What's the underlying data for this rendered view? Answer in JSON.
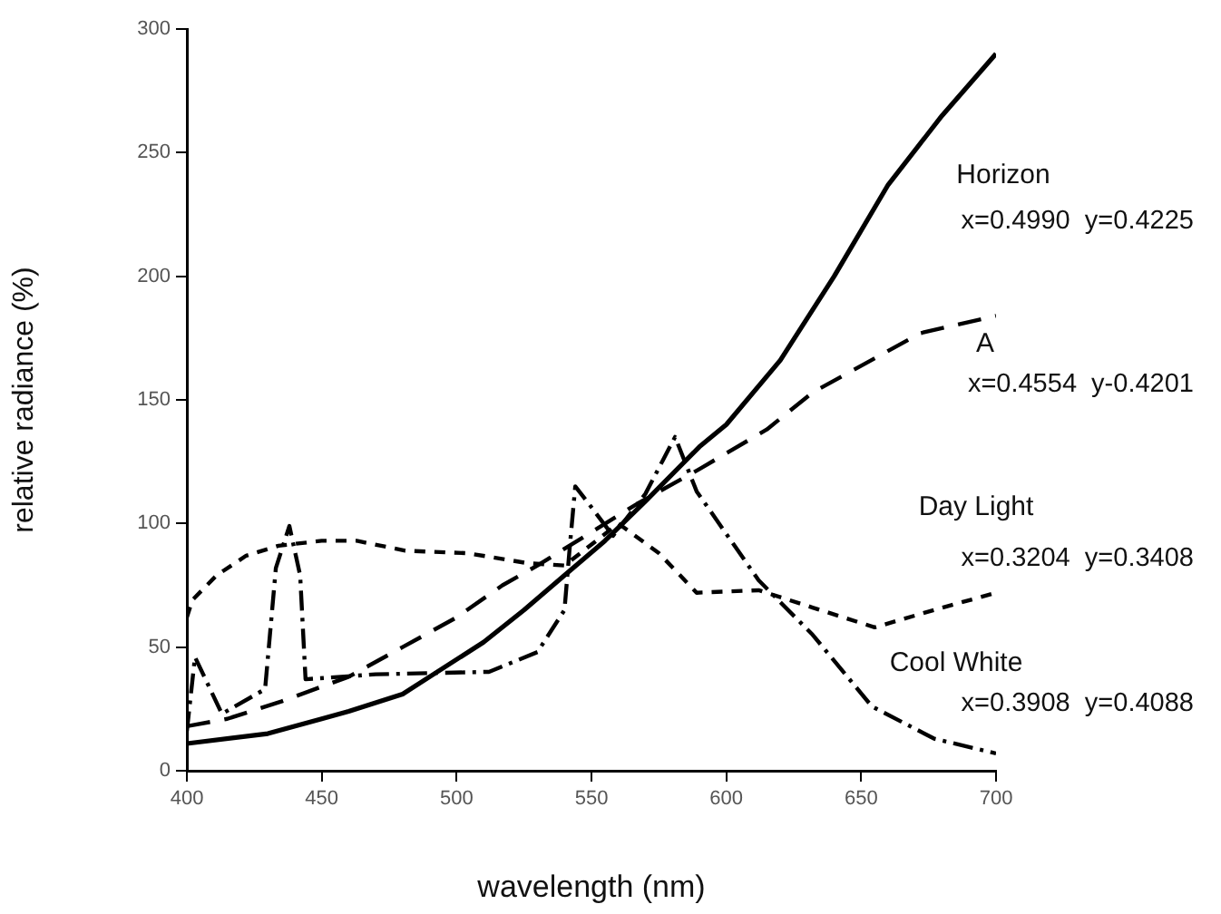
{
  "chart_data": {
    "type": "line",
    "xlabel": "wavelength (nm)",
    "ylabel": "relative radiance (%)",
    "xlim": [
      400,
      700
    ],
    "xticks": [
      400,
      450,
      500,
      550,
      600,
      650,
      700
    ],
    "ylim": [
      0,
      300
    ],
    "yticks": [
      0,
      50,
      100,
      150,
      200,
      250,
      300
    ],
    "grid": false,
    "legend": false,
    "marker": "none",
    "series": [
      {
        "name": "Horizon",
        "color": "#000000",
        "line_style": "solid",
        "x": [
          400,
          430,
          450,
          460,
          480,
          490,
          510,
          525,
          540,
          555,
          570,
          590,
          600,
          620,
          640,
          660,
          680,
          700
        ],
        "values": [
          11,
          15,
          21,
          24,
          31,
          38,
          52,
          65,
          79,
          93,
          109,
          131,
          140,
          166,
          200,
          237,
          265,
          290
        ]
      },
      {
        "name": "A",
        "color": "#000000",
        "line_style": "dashed",
        "x": [
          400,
          415,
          435,
          460,
          480,
          500,
          517,
          530,
          567,
          590,
          615,
          632,
          652,
          672,
          700
        ],
        "values": [
          18,
          21,
          28,
          38,
          50,
          62,
          75,
          83,
          108,
          122,
          138,
          153,
          165,
          177,
          184
        ]
      },
      {
        "name": "Day Light",
        "color": "#000000",
        "line_style": "dotted",
        "x": [
          400,
          402,
          411,
          422,
          434,
          450,
          463,
          481,
          504,
          526,
          540,
          560,
          575,
          589,
          612,
          632,
          655,
          677,
          700
        ],
        "values": [
          62,
          69,
          79,
          87,
          91,
          93,
          93,
          89,
          88,
          84,
          83,
          100,
          88,
          72,
          73,
          66,
          58,
          65,
          72
        ]
      },
      {
        "name": "Cool White",
        "color": "#000000",
        "line_style": "dashdot",
        "x": [
          400,
          403,
          413,
          429,
          433,
          438,
          442,
          444,
          470,
          512,
          530,
          540,
          542,
          544,
          549,
          558,
          570,
          581,
          589,
          612,
          632,
          654,
          677,
          700
        ],
        "values": [
          16,
          46,
          23,
          33,
          82,
          99,
          79,
          37,
          39,
          40,
          48,
          65,
          91,
          115,
          108,
          95,
          112,
          135,
          113,
          77,
          55,
          26,
          13,
          7
        ]
      }
    ],
    "annotations": [
      "x=0.4990  y=0.4225",
      "x=0.4554  y-0.4201",
      "x=0.3204  y=0.3408",
      "x=0.3908  y=0.4088"
    ]
  }
}
